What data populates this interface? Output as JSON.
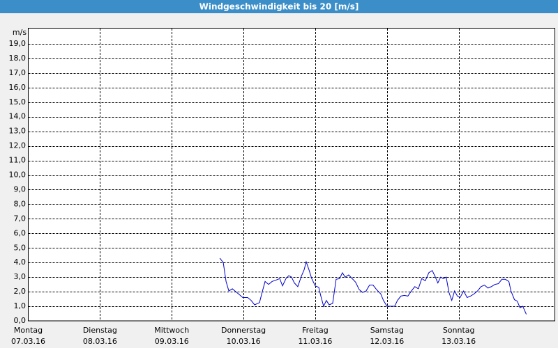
{
  "chart_data": {
    "type": "line",
    "title": "Windgeschwindigkeit bis 20 [m/s]",
    "y_label": "m/s",
    "xlim": [
      0,
      7.34
    ],
    "xticks": [
      {
        "value": 0,
        "label": "Montag",
        "sublabel": "07.03.16"
      },
      {
        "value": 1,
        "label": "Dienstag",
        "sublabel": "08.03.16"
      },
      {
        "value": 2,
        "label": "Mittwoch",
        "sublabel": "09.03.16"
      },
      {
        "value": 3,
        "label": "Donnerstag",
        "sublabel": "10.03.16"
      },
      {
        "value": 4,
        "label": "Freitag",
        "sublabel": "11.03.16"
      },
      {
        "value": 5,
        "label": "Samstag",
        "sublabel": "12.03.16"
      },
      {
        "value": 6,
        "label": "Sonntag",
        "sublabel": "13.03.16"
      }
    ],
    "ylim": [
      0,
      20
    ],
    "yticks": [
      {
        "value": 0,
        "label": "0,0"
      },
      {
        "value": 1,
        "label": "1,0"
      },
      {
        "value": 2,
        "label": "2,0"
      },
      {
        "value": 3,
        "label": "3,0"
      },
      {
        "value": 4,
        "label": "4,0"
      },
      {
        "value": 5,
        "label": "5,0"
      },
      {
        "value": 6,
        "label": "6,0"
      },
      {
        "value": 7,
        "label": "7,0"
      },
      {
        "value": 8,
        "label": "8,0"
      },
      {
        "value": 9,
        "label": "9,0"
      },
      {
        "value": 10,
        "label": "10,0"
      },
      {
        "value": 11,
        "label": "11,0"
      },
      {
        "value": 12,
        "label": "12,0"
      },
      {
        "value": 13,
        "label": "13,0"
      },
      {
        "value": 14,
        "label": "14,0"
      },
      {
        "value": 15,
        "label": "15,0"
      },
      {
        "value": 16,
        "label": "16,0"
      },
      {
        "value": 17,
        "label": "17,0"
      },
      {
        "value": 18,
        "label": "18,0"
      },
      {
        "value": 19,
        "label": "19,0"
      }
    ],
    "grid": true,
    "x": [
      2.67,
      2.718,
      2.757,
      2.796,
      2.845,
      2.893,
      2.942,
      2.99,
      3.058,
      3.107,
      3.155,
      3.223,
      3.262,
      3.301,
      3.35,
      3.398,
      3.456,
      3.505,
      3.544,
      3.592,
      3.631,
      3.67,
      3.709,
      3.757,
      3.806,
      3.845,
      3.874,
      3.913,
      3.951,
      4.0,
      4.049,
      4.078,
      4.117,
      4.155,
      4.194,
      4.243,
      4.291,
      4.34,
      4.379,
      4.417,
      4.466,
      4.515,
      4.563,
      4.612,
      4.66,
      4.709,
      4.757,
      4.806,
      4.854,
      4.913,
      4.951,
      5.0,
      5.049,
      5.107,
      5.146,
      5.194,
      5.243,
      5.291,
      5.34,
      5.388,
      5.437,
      5.485,
      5.534,
      5.583,
      5.631,
      5.67,
      5.709,
      5.748,
      5.786,
      5.825,
      5.864,
      5.903,
      5.942,
      5.981,
      6.019,
      6.068,
      6.117,
      6.165,
      6.214,
      6.262,
      6.311,
      6.359,
      6.408,
      6.456,
      6.505,
      6.553,
      6.602,
      6.65,
      6.699,
      6.728,
      6.777,
      6.816,
      6.854,
      6.893,
      6.942
    ],
    "series": [
      {
        "color": "#0000cc",
        "values": [
          4.3,
          4.0,
          2.7,
          2.05,
          2.2,
          2.0,
          1.8,
          1.6,
          1.6,
          1.4,
          1.1,
          1.25,
          2.0,
          2.7,
          2.5,
          2.7,
          2.8,
          2.9,
          2.4,
          2.9,
          3.1,
          3.0,
          2.6,
          2.35,
          3.05,
          3.5,
          4.05,
          3.5,
          2.9,
          2.4,
          2.3,
          1.7,
          1.0,
          1.4,
          1.1,
          1.2,
          2.85,
          2.9,
          3.3,
          3.0,
          3.15,
          2.9,
          2.65,
          2.15,
          1.95,
          2.05,
          2.45,
          2.45,
          2.15,
          1.85,
          1.4,
          1.0,
          1.0,
          1.0,
          1.4,
          1.7,
          1.75,
          1.7,
          2.05,
          2.35,
          2.2,
          2.9,
          2.75,
          3.3,
          3.45,
          3.05,
          2.6,
          3.0,
          2.9,
          3.0,
          1.95,
          1.4,
          2.05,
          1.7,
          1.6,
          2.05,
          1.6,
          1.7,
          1.85,
          2.05,
          2.35,
          2.45,
          2.25,
          2.35,
          2.5,
          2.55,
          2.85,
          2.85,
          2.7,
          2.05,
          1.45,
          1.35,
          0.9,
          1.0,
          0.45
        ]
      }
    ]
  }
}
